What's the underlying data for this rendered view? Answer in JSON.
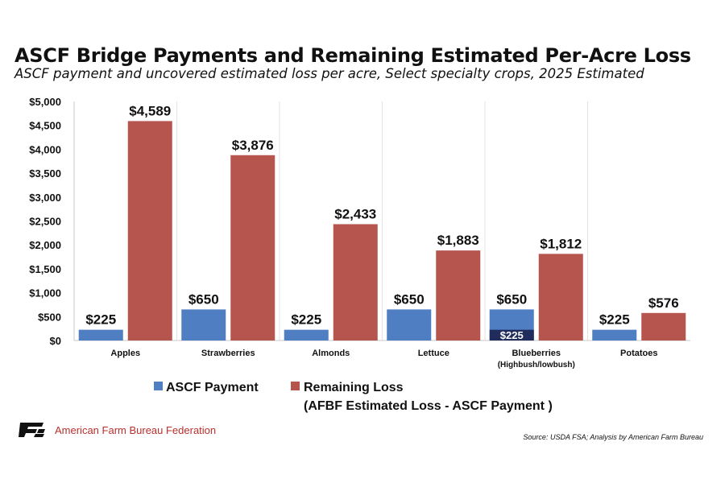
{
  "title": "ASCF Bridge Payments and Remaining Estimated Per-Acre Loss",
  "subtitle": "ASCF payment and uncovered estimated loss per acre, Select specialty crops, 2025 Estimated",
  "source": "Source: USDA FSA; Analysis by American Farm Bureau",
  "org_name": "American Farm Bureau Federation",
  "chart_data": {
    "type": "bar",
    "categories": [
      [
        "Apples"
      ],
      [
        "Strawberries"
      ],
      [
        "Almonds"
      ],
      [
        "Lettuce"
      ],
      [
        "Blueberries",
        "(Highbush/lowbush)"
      ],
      [
        "Potatoes"
      ]
    ],
    "series": [
      {
        "name": "ASCF Payment",
        "color": "#4f7fc2",
        "values": [
          225,
          650,
          225,
          650,
          650,
          225
        ],
        "labels": [
          "$225",
          "$650",
          "$225",
          "$650",
          "$650",
          "$225"
        ]
      },
      {
        "name": "Remaining Loss",
        "name_line2": "(AFBF Estimated Loss - ASCF Payment )",
        "color": "#b6544e",
        "values": [
          4589,
          3876,
          2433,
          1883,
          1812,
          576
        ],
        "labels": [
          "$4,589",
          "$3,876",
          "$2,433",
          "$1,883",
          "$1,812",
          "$576"
        ]
      }
    ],
    "overlay": {
      "category_index": 4,
      "value": 225,
      "label": "$225",
      "color": "#1f2c5c"
    },
    "ylim": [
      0,
      5000
    ],
    "yticks": [
      0,
      500,
      1000,
      1500,
      2000,
      2500,
      3000,
      3500,
      4000,
      4500,
      5000
    ],
    "ytick_labels": [
      "$0",
      "$500",
      "$1,000",
      "$1,500",
      "$2,000",
      "$2,500",
      "$3,000",
      "$3,500",
      "$4,000",
      "$4,500",
      "$5,000"
    ],
    "grid": false,
    "legend_position": "bottom"
  }
}
